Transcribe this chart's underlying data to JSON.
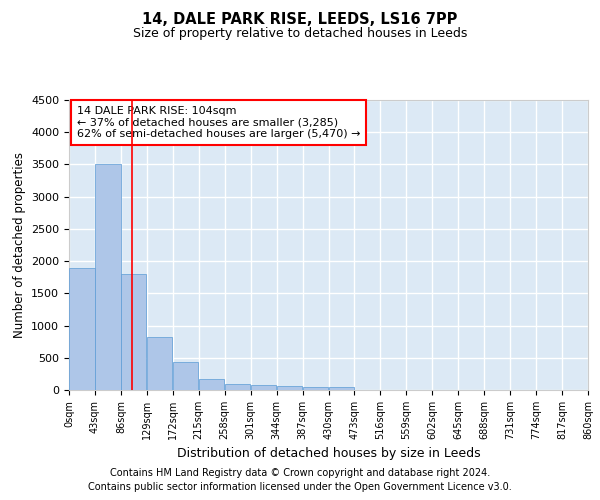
{
  "title1": "14, DALE PARK RISE, LEEDS, LS16 7PP",
  "title2": "Size of property relative to detached houses in Leeds",
  "xlabel": "Distribution of detached houses by size in Leeds",
  "ylabel": "Number of detached properties",
  "footnote1": "Contains HM Land Registry data © Crown copyright and database right 2024.",
  "footnote2": "Contains public sector information licensed under the Open Government Licence v3.0.",
  "bar_color": "#aec6e8",
  "bar_edge_color": "#5b9bd5",
  "bg_color": "#dce9f5",
  "grid_color": "#ffffff",
  "annotation_text": "14 DALE PARK RISE: 104sqm\n← 37% of detached houses are smaller (3,285)\n62% of semi-detached houses are larger (5,470) →",
  "red_line_x": 104,
  "bin_edges": [
    0,
    43,
    86,
    129,
    172,
    215,
    258,
    301,
    344,
    387,
    430,
    473,
    516,
    559,
    602,
    645,
    688,
    731,
    774,
    817,
    860
  ],
  "bar_heights": [
    1900,
    3500,
    1800,
    820,
    440,
    170,
    100,
    80,
    60,
    50,
    40,
    0,
    0,
    0,
    0,
    0,
    0,
    0,
    0,
    0
  ],
  "ylim": [
    0,
    4500
  ],
  "yticks": [
    0,
    500,
    1000,
    1500,
    2000,
    2500,
    3000,
    3500,
    4000,
    4500
  ],
  "xtick_labels": [
    "0sqm",
    "43sqm",
    "86sqm",
    "129sqm",
    "172sqm",
    "215sqm",
    "258sqm",
    "301sqm",
    "344sqm",
    "387sqm",
    "430sqm",
    "473sqm",
    "516sqm",
    "559sqm",
    "602sqm",
    "645sqm",
    "688sqm",
    "731sqm",
    "774sqm",
    "817sqm",
    "860sqm"
  ]
}
